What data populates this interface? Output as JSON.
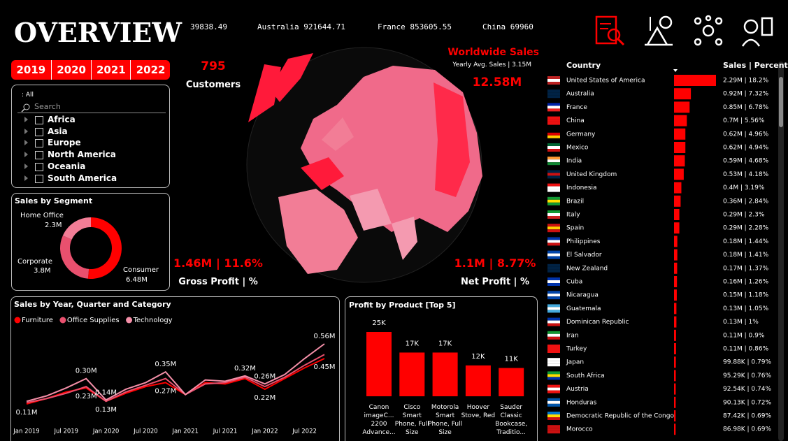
{
  "header": {
    "title": "OVERVIEW",
    "ticker": [
      "39838.49",
      "Australia 921644.71",
      "France 853605.55",
      "China 69960"
    ]
  },
  "years": [
    "2019",
    "2020",
    "2021",
    "2022"
  ],
  "filter": {
    "label": ": All",
    "search": "Search",
    "items": [
      "Africa",
      "Asia",
      "Europe",
      "North America",
      "Oceania",
      "South America"
    ]
  },
  "kpis": {
    "customers": {
      "value": "795",
      "label": "Customers"
    },
    "worldwide": {
      "title": "Worldwide Sales",
      "subtitle": "Yearly Avg. Sales | 3.15M",
      "value": "12.58M"
    },
    "gross": {
      "value": "1.46M | 11.6%",
      "label": "Gross Profit | %"
    },
    "net": {
      "value": "1.1M | 8.77%",
      "label": "Net Profit | %"
    }
  },
  "chart_data": [
    {
      "type": "pie",
      "title": "Sales by Segment",
      "categories": [
        "Consumer",
        "Corporate",
        "Home Office"
      ],
      "values": [
        6.48,
        3.8,
        2.3
      ],
      "value_labels": [
        "6.48M",
        "3.8M",
        "2.3M"
      ],
      "colors": [
        "#ff0000",
        "#e8506e",
        "#f27d96"
      ]
    },
    {
      "type": "line",
      "title": "Sales by Year, Quarter and Category",
      "categories": [
        "Jan 2019",
        null,
        "Jul 2019",
        null,
        "Jan 2020",
        null,
        "Jul 2020",
        null,
        "Jan 2021",
        null,
        "Jul 2021",
        null,
        "Jan 2022",
        null,
        "Jul 2022",
        null
      ],
      "series": [
        {
          "name": "Furniture",
          "color": "#ff0000",
          "values": [
            0.11,
            0.15,
            0.2,
            0.23,
            0.13,
            0.19,
            0.24,
            0.27,
            0.18,
            0.27,
            0.26,
            0.3,
            0.22,
            0.3,
            0.38,
            0.45
          ],
          "value_labels": [
            "0.11M",
            null,
            null,
            "0.23M",
            "0.13M",
            null,
            null,
            "0.27M",
            null,
            null,
            null,
            null,
            "0.22M",
            null,
            null,
            "0.45M"
          ]
        },
        {
          "name": "Office Supplies",
          "color": "#e8506e",
          "values": [
            0.12,
            0.15,
            0.19,
            0.24,
            0.13,
            0.2,
            0.25,
            0.3,
            0.18,
            0.26,
            0.27,
            0.31,
            0.24,
            0.31,
            0.4,
            0.48
          ]
        },
        {
          "name": "Technology",
          "color": "#f48fa8",
          "values": [
            0.13,
            0.17,
            0.23,
            0.3,
            0.14,
            0.22,
            0.27,
            0.35,
            0.18,
            0.29,
            0.28,
            0.32,
            0.26,
            0.33,
            0.45,
            0.56
          ],
          "value_labels": [
            null,
            null,
            null,
            "0.30M",
            "0.14M",
            null,
            null,
            "0.35M",
            null,
            null,
            null,
            "0.32M",
            "0.26M",
            null,
            null,
            "0.56M"
          ]
        }
      ]
    },
    {
      "type": "bar",
      "title": "Profit by Product [Top 5]",
      "categories": [
        "Canon imageC... 2200 Advance...",
        "Cisco Smart Phone, Full Size",
        "Motorola Smart Phone, Full Size",
        "Hoover Stove, Red",
        "Sauder Classic Bookcase, Traditio..."
      ],
      "values": [
        25,
        17,
        17,
        12,
        11
      ],
      "value_labels": [
        "25K",
        "17K",
        "17K",
        "12K",
        "11K"
      ],
      "color": "#ff0000"
    },
    {
      "type": "hbar",
      "columns": [
        "Country",
        "Sales | Percent"
      ],
      "color": "#ff0000",
      "categories": [
        "United States of America",
        "Australia",
        "France",
        "China",
        "Germany",
        "Mexico",
        "India",
        "United Kingdom",
        "Indonesia",
        "Brazil",
        "Italy",
        "Spain",
        "Philippines",
        "El Salvador",
        "New Zealand",
        "Cuba",
        "Nicaragua",
        "Guatemala",
        "Dominican Republic",
        "Iran",
        "Turkey",
        "Japan",
        "South Africa",
        "Austria",
        "Honduras",
        "Democratic Republic of the Congo",
        "Morocco"
      ],
      "values": [
        2290000,
        920000,
        850000,
        700000,
        620000,
        620000,
        590000,
        530000,
        400000,
        360000,
        290000,
        290000,
        180000,
        180000,
        170000,
        160000,
        150000,
        130000,
        130000,
        110000,
        110000,
        99880,
        95290,
        92540,
        90130,
        87420,
        86980
      ],
      "value_labels": [
        "2.29M | 18.2%",
        "0.92M | 7.32%",
        "0.85M | 6.78%",
        "0.7M | 5.56%",
        "0.62M | 4.96%",
        "0.62M | 4.94%",
        "0.59M | 4.68%",
        "0.53M | 4.18%",
        "0.4M | 3.19%",
        "0.36M | 2.84%",
        "0.29M | 2.3%",
        "0.29M | 2.28%",
        "0.18M | 1.44%",
        "0.18M | 1.41%",
        "0.17M | 1.37%",
        "0.16M | 1.26%",
        "0.15M | 1.18%",
        "0.13M | 1.05%",
        "0.13M | 1%",
        "0.11M | 0.9%",
        "0.11M | 0.86%",
        "99.88K | 0.79%",
        "95.29K | 0.76%",
        "92.54K | 0.74%",
        "90.13K | 0.72%",
        "87.42K | 0.69%",
        "86.98K | 0.69%"
      ]
    }
  ]
}
